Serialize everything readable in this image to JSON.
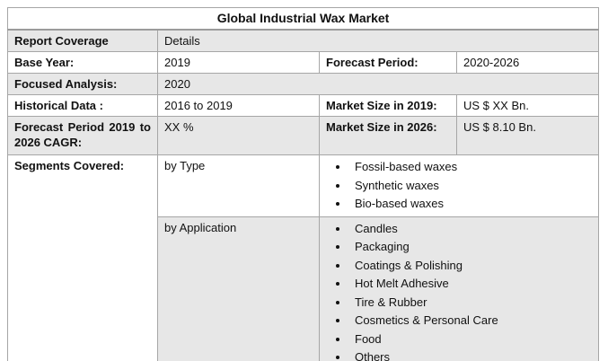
{
  "header": {
    "title": "Global Industrial Wax Market"
  },
  "table": {
    "report_coverage": {
      "label": "Report Coverage",
      "value": "Details"
    },
    "base_year": {
      "label": "Base Year:",
      "value": "2019"
    },
    "forecast_period": {
      "label": "Forecast Period:",
      "value": "2020-2026"
    },
    "focused_analysis": {
      "label": "Focused Analysis:",
      "value": "2020"
    },
    "historical_data": {
      "label": "Historical Data :",
      "value": "2016 to 2019"
    },
    "market_size_2019": {
      "label": "Market Size in 2019:",
      "value": "US $ XX Bn."
    },
    "forecast_cagr": {
      "label": "Forecast Period 2019 to 2026 CAGR:",
      "value": "XX %"
    },
    "market_size_2026": {
      "label": "Market Size in 2026:",
      "value": "US $ 8.10 Bn."
    },
    "segments": {
      "label": "Segments Covered:",
      "by_type": {
        "label": "by Type",
        "items": [
          "Fossil-based waxes",
          "Synthetic waxes",
          "Bio-based waxes"
        ]
      },
      "by_application": {
        "label": "by Application",
        "items": [
          "Candles",
          "Packaging",
          "Coatings & Polishing",
          "Hot Melt Adhesive",
          "Tire & Rubber",
          "Cosmetics & Personal Care",
          "Food",
          "Others"
        ]
      }
    }
  },
  "colors": {
    "shaded_row": "#e7e7e7",
    "border": "#a6a6a6",
    "title_underline": "#9b9b9b",
    "text": "#111111"
  }
}
